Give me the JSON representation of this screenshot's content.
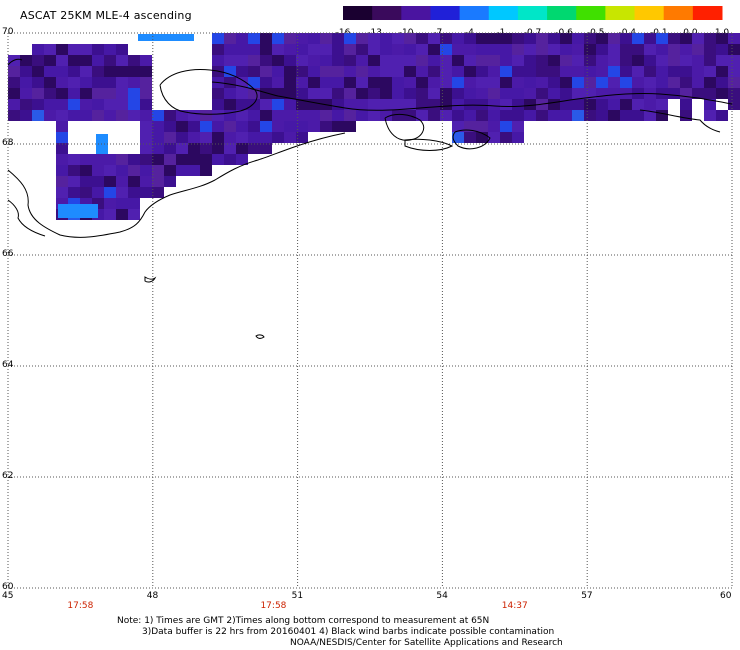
{
  "title": "ASCAT 25KM MLE-4 ascending",
  "colorbar": {
    "ticks": [
      "-16",
      "-13",
      "-10",
      "-7",
      "-4",
      "-1",
      "-0.7",
      "-0.6",
      "-0.5",
      "-0.4",
      "-0.1",
      "0.0",
      "1.0"
    ],
    "colors": [
      "#1a0030",
      "#3a0a5c",
      "#4a14a0",
      "#2020d8",
      "#1a7aff",
      "#00c8ff",
      "#00e6c8",
      "#00d870",
      "#40e000",
      "#c8e600",
      "#ffc800",
      "#ff7a00",
      "#ff2000"
    ]
  },
  "axes": {
    "lat_ticks": [
      "70",
      "68",
      "66",
      "64",
      "62",
      "60"
    ],
    "lon_ticks": [
      "45",
      "48",
      "51",
      "54",
      "57",
      "60"
    ],
    "lat_range": [
      60,
      70
    ],
    "lon_range": [
      45,
      60
    ]
  },
  "pass_times": [
    {
      "lon": 46.5,
      "label": "17:58"
    },
    {
      "lon": 50.5,
      "label": "17:58"
    },
    {
      "lon": 55.5,
      "label": "14:37"
    }
  ],
  "notes": {
    "line1": "Note: 1) Times are GMT 2)Times along bottom correspond to measurement at 65N",
    "line2": "3)Data buffer is 22 hrs from 20160401 4) Black wind barbs indicate possible contamination",
    "line3": "NOAA/NESDIS/Center for Satellite Applications and Research"
  },
  "palette": {
    "base": "#4a18a8",
    "dark": "#2a0858",
    "mid": "#3a10880",
    "blue": "#2244e8",
    "lightblue": "#1e90ff",
    "grid": "#555555"
  }
}
